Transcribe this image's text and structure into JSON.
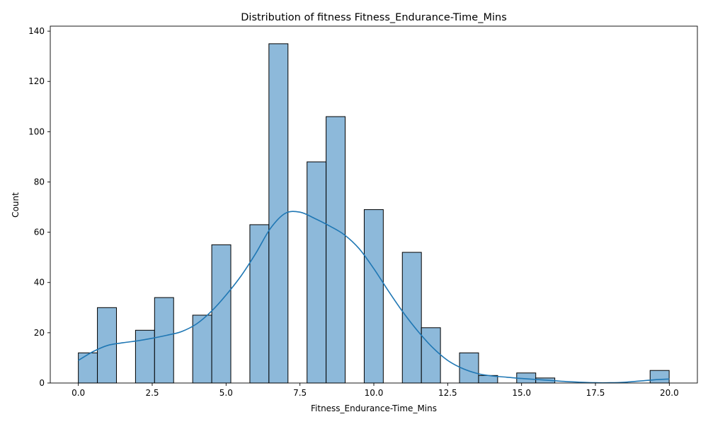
{
  "chart_data": {
    "type": "bar",
    "title": "Distribution of fitness Fitness_Endurance-Time_Mins",
    "xlabel": "Fitness_Endurance-Time_Mins",
    "ylabel": "Count",
    "xlim": [
      -0.95,
      20.95
    ],
    "ylim": [
      0,
      142
    ],
    "x_ticks": [
      0.0,
      2.5,
      5.0,
      7.5,
      10.0,
      12.5,
      15.0,
      17.5,
      20.0
    ],
    "x_tick_labels": [
      "0.0",
      "2.5",
      "5.0",
      "7.5",
      "10.0",
      "12.5",
      "15.0",
      "17.5",
      "20.0"
    ],
    "y_ticks": [
      0,
      20,
      40,
      60,
      80,
      100,
      120,
      140
    ],
    "y_tick_labels": [
      "0",
      "20",
      "40",
      "60",
      "80",
      "100",
      "120",
      "140"
    ],
    "grid": false,
    "bins": [
      {
        "start": 0.0,
        "end": 0.645,
        "count": 12
      },
      {
        "start": 0.645,
        "end": 1.29,
        "count": 30
      },
      {
        "start": 1.935,
        "end": 2.58,
        "count": 21
      },
      {
        "start": 2.58,
        "end": 3.225,
        "count": 34
      },
      {
        "start": 3.87,
        "end": 4.515,
        "count": 27
      },
      {
        "start": 4.515,
        "end": 5.16,
        "count": 55
      },
      {
        "start": 5.805,
        "end": 6.45,
        "count": 63
      },
      {
        "start": 6.45,
        "end": 7.095,
        "count": 135
      },
      {
        "start": 7.74,
        "end": 8.385,
        "count": 88
      },
      {
        "start": 8.385,
        "end": 9.03,
        "count": 106
      },
      {
        "start": 9.675,
        "end": 10.32,
        "count": 69
      },
      {
        "start": 10.965,
        "end": 11.61,
        "count": 52
      },
      {
        "start": 11.61,
        "end": 12.255,
        "count": 22
      },
      {
        "start": 12.9,
        "end": 13.545,
        "count": 12
      },
      {
        "start": 13.545,
        "end": 14.19,
        "count": 3
      },
      {
        "start": 14.835,
        "end": 15.48,
        "count": 4
      },
      {
        "start": 15.48,
        "end": 16.125,
        "count": 2
      },
      {
        "start": 19.35,
        "end": 19.995,
        "count": 5
      }
    ],
    "kde": {
      "x": [
        0.0,
        0.5,
        1.0,
        1.5,
        2.0,
        2.5,
        3.0,
        3.5,
        4.0,
        4.5,
        5.0,
        5.5,
        6.0,
        6.5,
        7.0,
        7.5,
        8.0,
        8.5,
        9.0,
        9.5,
        10.0,
        10.5,
        11.0,
        11.5,
        12.0,
        12.5,
        13.0,
        13.5,
        14.0,
        14.5,
        15.0,
        15.5,
        16.0,
        16.5,
        17.0,
        17.5,
        18.0,
        18.5,
        19.0,
        19.5,
        20.0
      ],
      "y": [
        9,
        12.5,
        15,
        16,
        16.8,
        17.8,
        19,
        20.5,
        23.5,
        28.5,
        35,
        42.5,
        51.5,
        61.5,
        67.5,
        68,
        65.5,
        62.5,
        59,
        53.5,
        45.5,
        36.5,
        28,
        20.5,
        14,
        9,
        5.8,
        3.8,
        2.8,
        2.3,
        1.8,
        1.4,
        1.0,
        0.6,
        0.3,
        0.1,
        0.1,
        0.3,
        0.8,
        1.3,
        1.6
      ]
    },
    "colors": {
      "bar_fill": "#8db9da",
      "bar_edge": "#000000",
      "kde_line": "#1f77b4"
    }
  }
}
